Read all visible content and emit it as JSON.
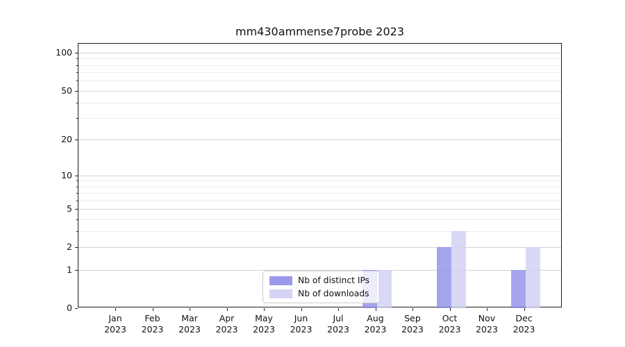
{
  "title": "mm430ammense7probe 2023",
  "chart_data": {
    "type": "bar",
    "title": "mm430ammense7probe 2023",
    "categories": [
      "Jan 2023",
      "Feb 2023",
      "Mar 2023",
      "Apr 2023",
      "May 2023",
      "Jun 2023",
      "Jul 2023",
      "Aug 2023",
      "Sep 2023",
      "Oct 2023",
      "Nov 2023",
      "Dec 2023"
    ],
    "series": [
      {
        "name": "Nb of distinct IPs",
        "color": "#8f8fe9",
        "values": [
          0,
          0,
          0,
          0,
          0,
          0,
          0,
          1,
          0,
          2,
          0,
          1
        ]
      },
      {
        "name": "Nb of downloads",
        "color": "#cfcff4",
        "values": [
          0,
          0,
          0,
          0,
          0,
          0,
          0,
          1,
          0,
          3,
          0,
          2
        ]
      }
    ],
    "yscale": "log1p",
    "ylim": [
      0,
      118
    ],
    "yticks": [
      0,
      1,
      2,
      5,
      10,
      20,
      50,
      100
    ],
    "minor_yticks": [
      3,
      4,
      6,
      7,
      8,
      9,
      30,
      40,
      60,
      70,
      80,
      90
    ],
    "xlabel": "",
    "ylabel": "",
    "grid": "horizontal",
    "legend_position": "inside-bottom-center"
  }
}
